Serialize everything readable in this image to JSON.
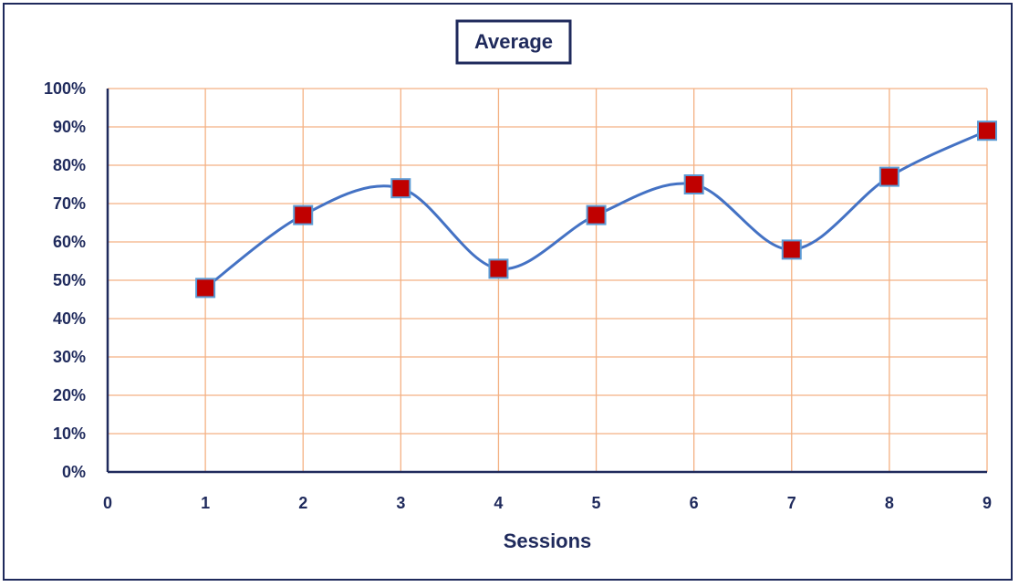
{
  "chart_data": {
    "type": "line",
    "title": "Average",
    "xlabel": "Sessions",
    "ylabel": "",
    "x": [
      1,
      2,
      3,
      4,
      5,
      6,
      7,
      8,
      9
    ],
    "series": [
      {
        "values": [
          0.48,
          0.67,
          0.74,
          0.53,
          0.67,
          0.75,
          0.58,
          0.77,
          0.89
        ]
      }
    ],
    "xlim": [
      0,
      9
    ],
    "ylim": [
      0,
      1
    ],
    "x_ticks": [
      "0",
      "1",
      "2",
      "3",
      "4",
      "5",
      "6",
      "7",
      "8",
      "9"
    ],
    "y_ticks": [
      "0%",
      "10%",
      "20%",
      "30%",
      "40%",
      "50%",
      "60%",
      "70%",
      "80%",
      "90%",
      "100%"
    ],
    "smoothed": true,
    "grid": true,
    "legend": "none",
    "colors": {
      "line": "#4472c4",
      "marker_fill": "#c00000",
      "marker_stroke": "#5b9bd5",
      "grid": "#f4b183",
      "axis": "#1f2a5c",
      "text": "#1f2a5c"
    }
  }
}
